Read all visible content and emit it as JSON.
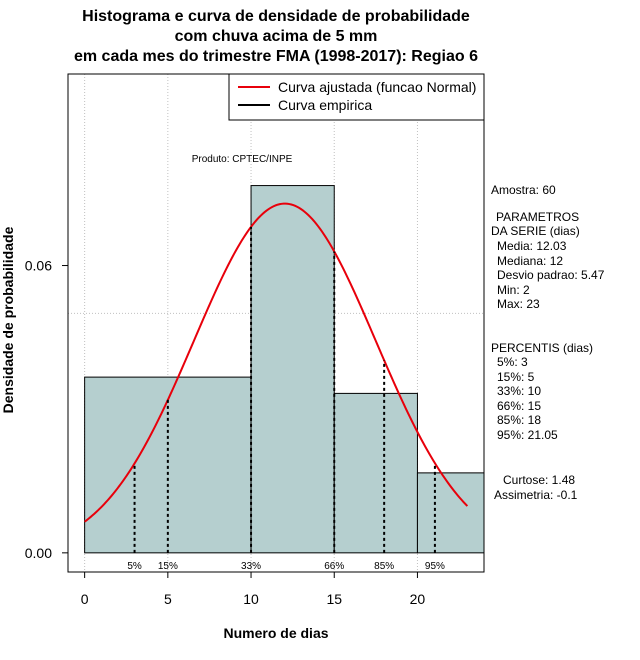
{
  "chart_data": {
    "type": "bar",
    "title_lines": [
      "Histograma e curva de densidade de probabilidade",
      "com chuva acima de 5 mm",
      "em cada mes do trimestre FMA (1998-2017): Regiao 6"
    ],
    "xlabel": "Numero de dias",
    "ylabel": "Densidade de probabilidade",
    "xlim": [
      -1,
      24
    ],
    "ylim": [
      -0.004,
      0.1
    ],
    "x_ticks": [
      {
        "value": 0,
        "label": "0"
      },
      {
        "value": 5,
        "label": "5"
      },
      {
        "value": 10,
        "label": "10"
      },
      {
        "value": 15,
        "label": "15"
      },
      {
        "value": 20,
        "label": "20"
      }
    ],
    "y_ticks": [
      {
        "value": 0.0,
        "label": "0.00"
      },
      {
        "value": 0.06,
        "label": "0.06"
      }
    ],
    "grid_x": [
      0,
      5,
      10,
      15,
      20
    ],
    "grid_y": [
      0.05,
      0.1
    ],
    "bins": [
      {
        "x0": 0,
        "x1": 10,
        "density": 0.0367
      },
      {
        "x0": 10,
        "x1": 15,
        "density": 0.0767
      },
      {
        "x0": 15,
        "x1": 20,
        "density": 0.0333
      },
      {
        "x0": 20,
        "x1": 24,
        "density": 0.0167
      }
    ],
    "normal_curve": {
      "mean": 12.03,
      "sd": 5.47,
      "x_from": 0,
      "x_to": 23
    },
    "percentile_lines": [
      {
        "x": 3,
        "label": "5%"
      },
      {
        "x": 5,
        "label": "15%"
      },
      {
        "x": 10,
        "label": "33%"
      },
      {
        "x": 15,
        "label": "66%"
      },
      {
        "x": 18,
        "label": "85%"
      },
      {
        "x": 21.05,
        "label": "95%"
      }
    ],
    "legend": {
      "position": "top-right",
      "entries": [
        {
          "label": "Curva ajustada (funcao Normal)",
          "color": "#e8000b"
        },
        {
          "label": "Curva empirica",
          "color": "#000000"
        }
      ]
    },
    "annotation": "Produto: CPTEC/INPE",
    "colors": {
      "bar_fill": "#b5cfcf",
      "curve": "#e8000b",
      "grid": "#c0c0c0"
    }
  },
  "stats_panel": {
    "amostra": "Amostra: 60",
    "parametros_title_1": "PARAMETROS",
    "parametros_title_2": "DA SERIE (dias)",
    "media": "Media: 12.03",
    "mediana": "Mediana: 12",
    "desvio": "Desvio padrao: 5.47",
    "min": "Min: 2",
    "max": "Max: 23",
    "percentis_title": "PERCENTIS (dias)",
    "p5": "5%: 3",
    "p15": "15%: 5",
    "p33": "33%: 10",
    "p66": "66%: 15",
    "p85": "85%: 18",
    "p95": "95%: 21.05",
    "curtose": "Curtose: 1.48",
    "assimetria": "Assimetria: -0.1"
  }
}
